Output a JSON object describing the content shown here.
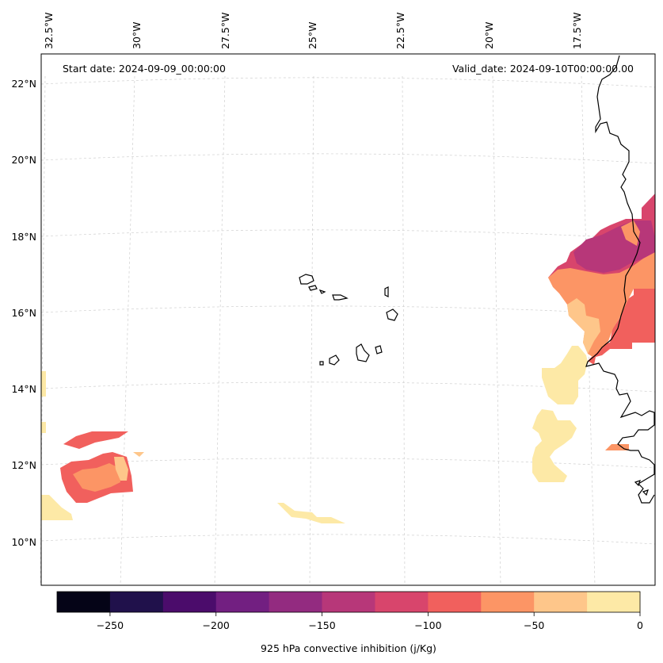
{
  "map": {
    "start_date_label": "Start date: 2024-09-09_00:00:00",
    "valid_date_label": "Valid_date: 2024-09-10T00:00:00.00",
    "longitude_labels": [
      "32.5°W",
      "30°W",
      "27.5°W",
      "25°W",
      "22.5°W",
      "20°W",
      "17.5°W"
    ],
    "latitude_labels": [
      "22°N",
      "20°N",
      "18°N",
      "16°N",
      "14°N",
      "12°N",
      "10°N"
    ],
    "gridlines": true
  },
  "colorbar": {
    "title": "925 hPa convective inhibition (j/Kg)",
    "ticks": [
      "−250",
      "−200",
      "−150",
      "−100",
      "−50",
      "0"
    ],
    "levels": [
      -275,
      -250,
      -225,
      -200,
      -175,
      -150,
      -125,
      -100,
      -75,
      -50,
      -25,
      0
    ],
    "colors": [
      "#050417",
      "#20114b",
      "#4b0c6b",
      "#721f81",
      "#932b80",
      "#b73779",
      "#d8456c",
      "#f1605d",
      "#fc9565",
      "#fec68a",
      "#fde9a6"
    ]
  },
  "chart_data": {
    "type": "contour-map",
    "variable": "925 hPa convective inhibition",
    "units": "j/Kg",
    "region": {
      "lon_range": [
        "32.5°W",
        "17.5°W"
      ],
      "lat_range": [
        "10°N",
        "22°N"
      ]
    },
    "start_date": "2024-09-09_00:00:00",
    "valid_date": "2024-09-10T00:00:00.00",
    "colorbar_range": [
      -275,
      0
    ]
  }
}
